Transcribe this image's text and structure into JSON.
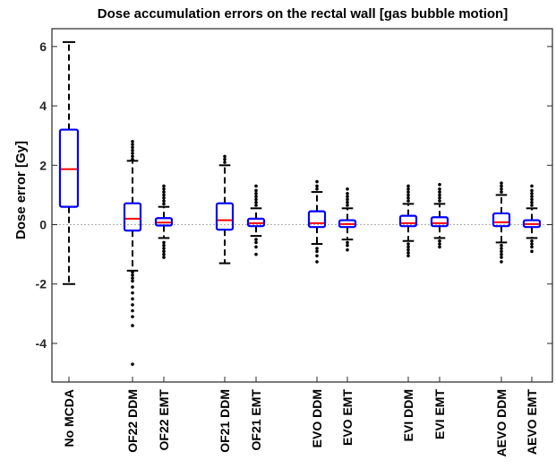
{
  "chart_data": {
    "type": "box",
    "title": "Dose accumulation errors on the rectal wall [gas bubble motion]",
    "xlabel": "",
    "ylabel": "Dose error [Gy]",
    "ylim": [
      -5.3,
      6.6
    ],
    "yticks": [
      -4,
      -2,
      0,
      2,
      4,
      6
    ],
    "grid": false,
    "legend": "none",
    "colors": {
      "box": "#0000ff",
      "median": "#ff0000",
      "whisker": "#000000",
      "outlier": "#000000",
      "zero_line": "#b0b0b0"
    },
    "categories": [
      "No MCDA",
      "OF22 DDM",
      "OF22 EMT",
      "OF21 DDM",
      "OF21 EMT",
      "EVO DDM",
      "EVO EMT",
      "EVI DDM",
      "EVI EMT",
      "AEVO DDM",
      "AEVO EMT"
    ],
    "boxes": [
      {
        "label": "No MCDA",
        "q1": 0.6,
        "median": 1.87,
        "q3": 3.2,
        "whisker_low": -2.0,
        "whisker_high": 6.15,
        "outliers": []
      },
      {
        "label": "OF22 DDM",
        "q1": -0.2,
        "median": 0.2,
        "q3": 0.72,
        "whisker_low": -1.55,
        "whisker_high": 2.15,
        "outliers": [
          2.2,
          2.3,
          2.4,
          2.5,
          2.6,
          2.7,
          2.8,
          -1.6,
          -1.7,
          -1.8,
          -1.9,
          -2.1,
          -2.3,
          -2.5,
          -2.7,
          -2.9,
          -3.1,
          -3.4,
          -4.7
        ]
      },
      {
        "label": "OF22 EMT",
        "q1": -0.03,
        "median": 0.07,
        "q3": 0.22,
        "whisker_low": -0.45,
        "whisker_high": 0.6,
        "outliers": [
          0.7,
          0.8,
          0.9,
          1.0,
          1.1,
          1.2,
          1.3,
          -0.6,
          -0.7,
          -0.8,
          -0.9,
          -1.0,
          -1.1
        ]
      },
      {
        "label": "OF21 DDM",
        "q1": -0.17,
        "median": 0.15,
        "q3": 0.72,
        "whisker_low": -1.3,
        "whisker_high": 2.0,
        "outliers": [
          2.1,
          2.2,
          2.3
        ]
      },
      {
        "label": "OF21 EMT",
        "q1": -0.05,
        "median": 0.05,
        "q3": 0.2,
        "whisker_low": -0.38,
        "whisker_high": 0.55,
        "outliers": [
          0.65,
          0.75,
          0.85,
          0.95,
          1.05,
          1.15,
          1.3,
          -0.5,
          -0.6,
          -0.75,
          -1.0
        ]
      },
      {
        "label": "EVO DDM",
        "q1": -0.08,
        "median": 0.05,
        "q3": 0.45,
        "whisker_low": -0.65,
        "whisker_high": 1.1,
        "outliers": [
          1.2,
          1.3,
          1.45,
          -0.8,
          -0.9,
          -1.05,
          -1.25
        ]
      },
      {
        "label": "EVO EMT",
        "q1": -0.08,
        "median": 0.02,
        "q3": 0.15,
        "whisker_low": -0.5,
        "whisker_high": 0.55,
        "outliers": [
          0.65,
          0.75,
          0.85,
          0.95,
          1.05,
          1.2,
          -0.6,
          -0.7,
          -0.85
        ]
      },
      {
        "label": "EVI DDM",
        "q1": -0.05,
        "median": 0.05,
        "q3": 0.3,
        "whisker_low": -0.55,
        "whisker_high": 0.7,
        "outliers": [
          0.8,
          0.9,
          1.0,
          1.1,
          1.2,
          1.3,
          -0.65,
          -0.75,
          -0.85,
          -0.95,
          -1.05
        ]
      },
      {
        "label": "EVI EMT",
        "q1": -0.05,
        "median": 0.05,
        "q3": 0.25,
        "whisker_low": -0.45,
        "whisker_high": 0.7,
        "outliers": [
          0.8,
          0.9,
          1.0,
          1.1,
          1.2,
          1.35,
          -0.55,
          -0.65,
          -0.75
        ]
      },
      {
        "label": "AEVO DDM",
        "q1": -0.05,
        "median": 0.08,
        "q3": 0.38,
        "whisker_low": -0.6,
        "whisker_high": 1.0,
        "outliers": [
          1.1,
          1.2,
          1.3,
          1.4,
          -0.7,
          -0.8,
          -0.9,
          -1.0,
          -1.1,
          -1.25
        ]
      },
      {
        "label": "AEVO EMT",
        "q1": -0.08,
        "median": 0.02,
        "q3": 0.15,
        "whisker_low": -0.45,
        "whisker_high": 0.55,
        "outliers": [
          0.65,
          0.75,
          0.85,
          0.95,
          1.05,
          1.15,
          1.3,
          -0.55,
          -0.65,
          -0.75,
          -0.9
        ]
      }
    ]
  }
}
